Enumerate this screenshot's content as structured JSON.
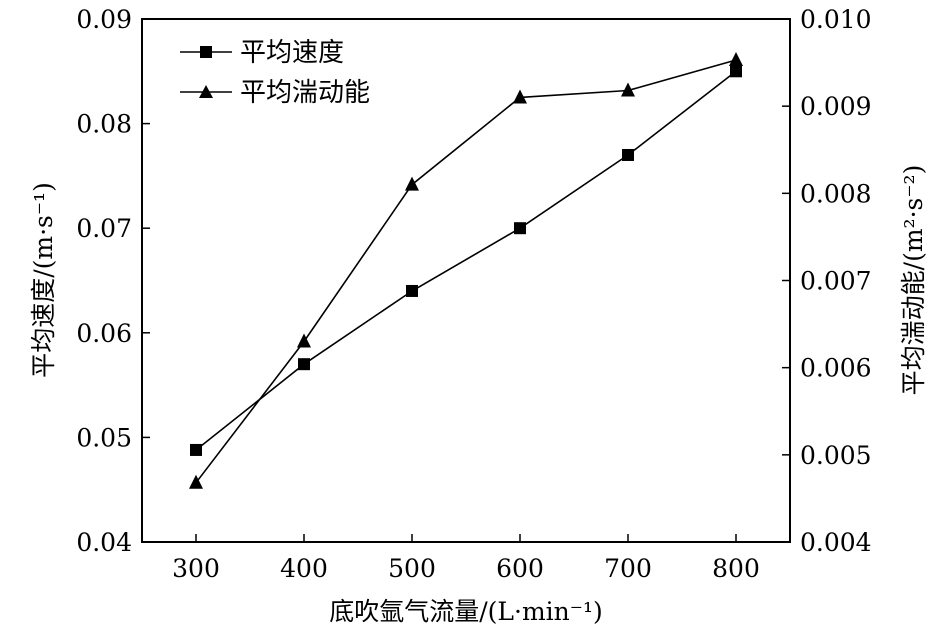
{
  "chart_data": {
    "type": "line",
    "x": [
      300,
      400,
      500,
      600,
      700,
      800
    ],
    "xlim": [
      250,
      850
    ],
    "xticks": [
      "300",
      "400",
      "500",
      "600",
      "700",
      "800"
    ],
    "xlabel": "底吹氩气流量/(L·min⁻¹)",
    "ylabel_left": "平均速度/(m·s⁻¹)",
    "ylabel_right": "平均湍动能/(m²·s⁻²)",
    "ylim_left": [
      0.04,
      0.09
    ],
    "ylim_right": [
      0.004,
      0.01
    ],
    "yticks_left": [
      "0.04",
      "0.05",
      "0.06",
      "0.07",
      "0.08",
      "0.09"
    ],
    "yticks_right": [
      "0.004",
      "0.005",
      "0.006",
      "0.007",
      "0.008",
      "0.009",
      "0.010"
    ],
    "legend_position": "top-left",
    "grid": false,
    "series": [
      {
        "name": "平均速度",
        "axis": "left",
        "marker": "square",
        "values": [
          0.0488,
          0.057,
          0.064,
          0.07,
          0.077,
          0.085
        ]
      },
      {
        "name": "平均湍动能",
        "axis": "right",
        "marker": "triangle",
        "values": [
          0.00468,
          0.0063,
          0.0081,
          0.0091,
          0.00918,
          0.00953
        ]
      }
    ]
  }
}
